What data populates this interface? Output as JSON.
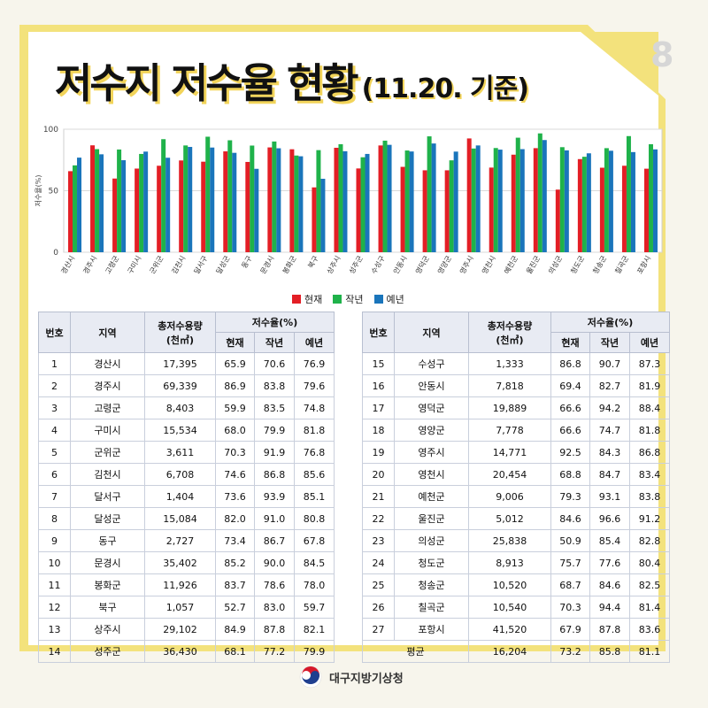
{
  "page_number": "8",
  "title": {
    "main": "저수지 저수율 현황",
    "sub": "(11.20. 기준)"
  },
  "colors": {
    "current": "#e31e25",
    "last_year": "#1fb24a",
    "normal": "#1a75bb",
    "frame": "#f3e27c",
    "title_shadow": "#f2d45a"
  },
  "chart_data": {
    "type": "bar",
    "ylabel": "저수율(%)",
    "ylim": [
      0,
      100
    ],
    "yticks": [
      0,
      50,
      100
    ],
    "categories": [
      "경산시",
      "경주시",
      "고령군",
      "구미시",
      "군위군",
      "김천시",
      "달서구",
      "달성군",
      "동구",
      "문경시",
      "봉화군",
      "북구",
      "상주시",
      "성주군",
      "수성구",
      "안동시",
      "영덕군",
      "영양군",
      "영주시",
      "영천시",
      "예천군",
      "울진군",
      "의성군",
      "청도군",
      "청송군",
      "칠곡군",
      "포항시"
    ],
    "series": [
      {
        "name": "현재",
        "color": "#e31e25",
        "values": [
          65.9,
          86.9,
          59.9,
          68.0,
          70.3,
          74.6,
          73.6,
          82.0,
          73.4,
          85.2,
          83.7,
          52.7,
          84.9,
          68.1,
          86.8,
          69.4,
          66.6,
          66.6,
          92.5,
          68.8,
          79.3,
          84.6,
          50.9,
          75.7,
          68.7,
          70.3,
          67.9
        ]
      },
      {
        "name": "작년",
        "color": "#1fb24a",
        "values": [
          70.6,
          83.8,
          83.5,
          79.9,
          91.9,
          86.8,
          93.9,
          91.0,
          86.7,
          90.0,
          78.6,
          83.0,
          87.8,
          77.2,
          90.7,
          82.7,
          94.2,
          74.7,
          84.3,
          84.7,
          93.1,
          96.6,
          85.4,
          77.6,
          84.6,
          94.4,
          87.8
        ]
      },
      {
        "name": "예년",
        "color": "#1a75bb",
        "values": [
          76.9,
          79.6,
          74.8,
          81.8,
          76.8,
          85.6,
          85.1,
          80.8,
          67.8,
          84.5,
          78.0,
          59.7,
          82.1,
          79.9,
          87.3,
          81.9,
          88.4,
          81.8,
          86.8,
          83.4,
          83.8,
          91.2,
          82.8,
          80.4,
          82.5,
          81.4,
          83.6
        ]
      }
    ],
    "legend": "bottom"
  },
  "table": {
    "headers": {
      "no": "번호",
      "region": "지역",
      "capacity": "총저수용량",
      "capacity_unit": "(천㎥)",
      "rate": "저수율(%)",
      "current": "현재",
      "last_year": "작년",
      "normal": "예년"
    },
    "rows_left": [
      [
        "1",
        "경산시",
        "17,395",
        "65.9",
        "70.6",
        "76.9"
      ],
      [
        "2",
        "경주시",
        "69,339",
        "86.9",
        "83.8",
        "79.6"
      ],
      [
        "3",
        "고령군",
        "8,403",
        "59.9",
        "83.5",
        "74.8"
      ],
      [
        "4",
        "구미시",
        "15,534",
        "68.0",
        "79.9",
        "81.8"
      ],
      [
        "5",
        "군위군",
        "3,611",
        "70.3",
        "91.9",
        "76.8"
      ],
      [
        "6",
        "김천시",
        "6,708",
        "74.6",
        "86.8",
        "85.6"
      ],
      [
        "7",
        "달서구",
        "1,404",
        "73.6",
        "93.9",
        "85.1"
      ],
      [
        "8",
        "달성군",
        "15,084",
        "82.0",
        "91.0",
        "80.8"
      ],
      [
        "9",
        "동구",
        "2,727",
        "73.4",
        "86.7",
        "67.8"
      ],
      [
        "10",
        "문경시",
        "35,402",
        "85.2",
        "90.0",
        "84.5"
      ],
      [
        "11",
        "봉화군",
        "11,926",
        "83.7",
        "78.6",
        "78.0"
      ],
      [
        "12",
        "북구",
        "1,057",
        "52.7",
        "83.0",
        "59.7"
      ],
      [
        "13",
        "상주시",
        "29,102",
        "84.9",
        "87.8",
        "82.1"
      ],
      [
        "14",
        "성주군",
        "36,430",
        "68.1",
        "77.2",
        "79.9"
      ]
    ],
    "rows_right": [
      [
        "15",
        "수성구",
        "1,333",
        "86.8",
        "90.7",
        "87.3"
      ],
      [
        "16",
        "안동시",
        "7,818",
        "69.4",
        "82.7",
        "81.9"
      ],
      [
        "17",
        "영덕군",
        "19,889",
        "66.6",
        "94.2",
        "88.4"
      ],
      [
        "18",
        "영양군",
        "7,778",
        "66.6",
        "74.7",
        "81.8"
      ],
      [
        "19",
        "영주시",
        "14,771",
        "92.5",
        "84.3",
        "86.8"
      ],
      [
        "20",
        "영천시",
        "20,454",
        "68.8",
        "84.7",
        "83.4"
      ],
      [
        "21",
        "예천군",
        "9,006",
        "79.3",
        "93.1",
        "83.8"
      ],
      [
        "22",
        "울진군",
        "5,012",
        "84.6",
        "96.6",
        "91.2"
      ],
      [
        "23",
        "의성군",
        "25,838",
        "50.9",
        "85.4",
        "82.8"
      ],
      [
        "24",
        "청도군",
        "8,913",
        "75.7",
        "77.6",
        "80.4"
      ],
      [
        "25",
        "청송군",
        "10,520",
        "68.7",
        "84.6",
        "82.5"
      ],
      [
        "26",
        "칠곡군",
        "10,540",
        "70.3",
        "94.4",
        "81.4"
      ],
      [
        "27",
        "포항시",
        "41,520",
        "67.9",
        "87.8",
        "83.6"
      ]
    ],
    "average": {
      "label": "평균",
      "capacity": "16,204",
      "current": "73.2",
      "last_year": "85.8",
      "normal": "81.1"
    }
  },
  "footer": {
    "agency": "대구지방기상청",
    "logo": "taegeuk-logo"
  }
}
